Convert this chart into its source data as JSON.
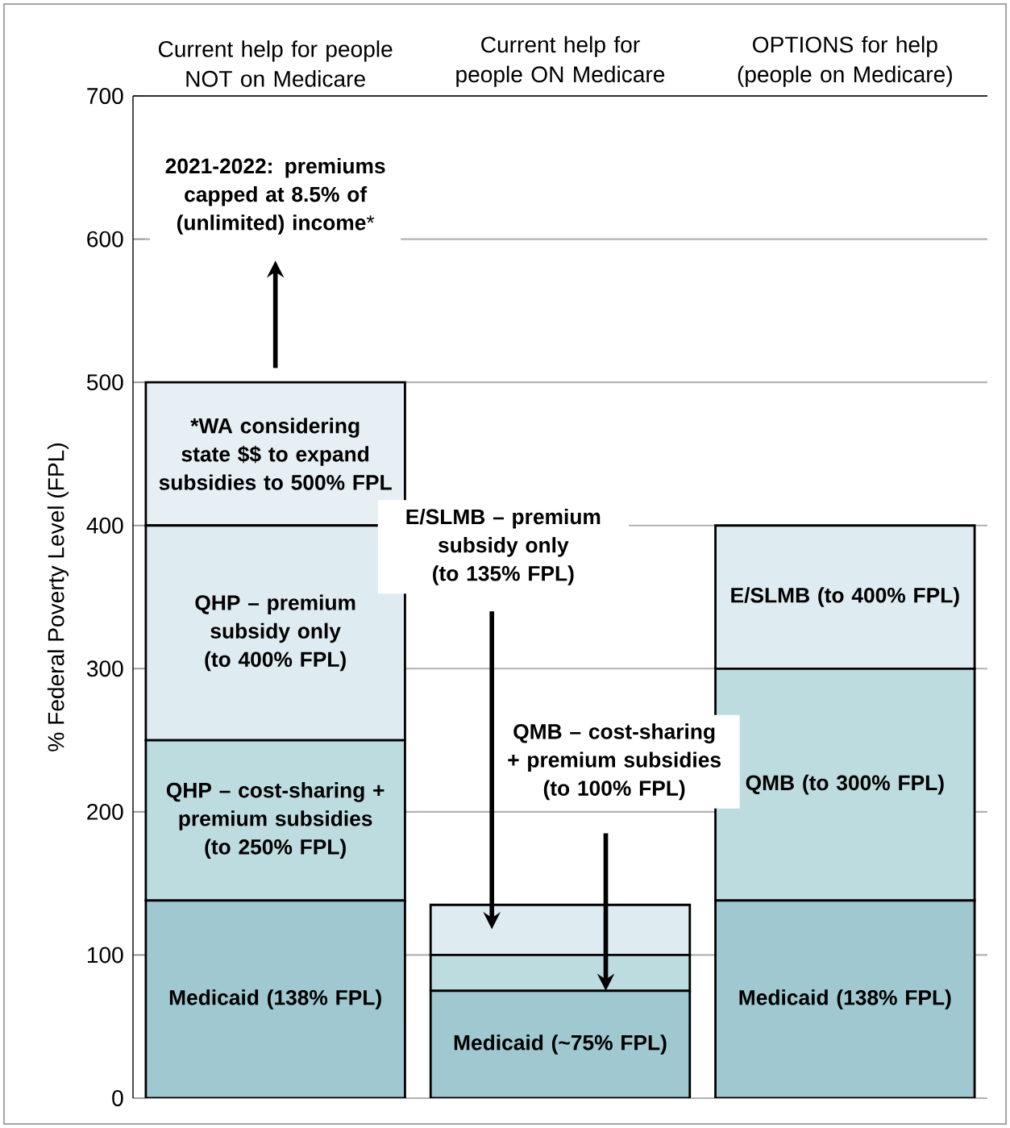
{
  "chart_data": {
    "type": "bar",
    "stacked": true,
    "ylabel": "% Federal Poverty Level (FPL)",
    "categories": [
      "Current help for people NOT on Medicare",
      "Current help for people ON Medicare",
      "OPTIONS for help (people on Medicare)"
    ],
    "ylim": [
      0,
      700
    ],
    "yticks": [
      0,
      100,
      200,
      300,
      400,
      500,
      600,
      700
    ],
    "grid": "y",
    "series": [
      {
        "color": "#9fc8d0",
        "values": [
          138,
          75,
          138
        ],
        "value_labels": [
          "**Medicaid (138% FPL)**",
          "**Medicaid (~75% FPL)**",
          "**Medicaid (138% FPL)**"
        ]
      },
      {
        "color": "#bddcdf",
        "values": [
          112,
          25,
          162
        ],
        "value_labels": [
          "**QHP – cost-sharing + premium subsidies (to 250% FPL)**",
          null,
          "**QMB (to 300% FPL)**"
        ]
      },
      {
        "color": "#deebf0",
        "values": [
          150,
          35,
          100
        ],
        "value_labels": [
          "**QHP – premium subsidy only (to 400% FPL)**",
          null,
          "**E/SLMB (to 400% FPL)**"
        ]
      },
      {
        "color": "#e6eff3",
        "values": [
          100,
          null,
          null
        ],
        "value_labels": [
          "***WA considering state $$ to expand subsidies to 500% FPL**",
          null,
          null
        ]
      }
    ],
    "annotations": [
      "**2021-2022: premiums capped at 8.5% of (unlimited) income***",
      "**E/SLMB – premium subsidy only (to 135% FPL)**",
      "**QMB – cost-sharing + premium subsidies (to 100% FPL)**"
    ]
  }
}
